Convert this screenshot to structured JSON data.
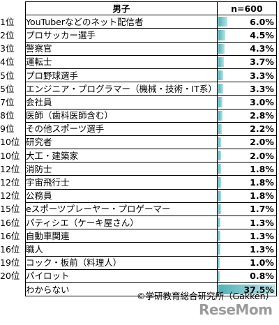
{
  "chart_data": {
    "type": "table",
    "header": {
      "rank": "",
      "category": "男子",
      "value": "n=600"
    },
    "rows": [
      {
        "rank": "1位",
        "label": "YouTuberなどのネット配信者",
        "value": 6.0,
        "text": "6.0%"
      },
      {
        "rank": "2位",
        "label": "プロサッカー選手",
        "value": 4.5,
        "text": "4.5%"
      },
      {
        "rank": "3位",
        "label": "警察官",
        "value": 4.3,
        "text": "4.3%"
      },
      {
        "rank": "4位",
        "label": "運転士",
        "value": 3.7,
        "text": "3.7%"
      },
      {
        "rank": "5位",
        "label": "プロ野球選手",
        "value": 3.3,
        "text": "3.3%"
      },
      {
        "rank": "5位",
        "label": "エンジニア・プログラマー（機械・技術・IT系）",
        "value": 3.3,
        "text": "3.3%"
      },
      {
        "rank": "7位",
        "label": "会社員",
        "value": 3.0,
        "text": "3.0%"
      },
      {
        "rank": "8位",
        "label": "医師（歯科医師含む）",
        "value": 2.8,
        "text": "2.8%"
      },
      {
        "rank": "9位",
        "label": "その他スポーツ選手",
        "value": 2.2,
        "text": "2.2%"
      },
      {
        "rank": "10位",
        "label": "研究者",
        "value": 2.0,
        "text": "2.0%"
      },
      {
        "rank": "10位",
        "label": "大工・建築家",
        "value": 2.0,
        "text": "2.0%"
      },
      {
        "rank": "12位",
        "label": "消防士",
        "value": 1.8,
        "text": "1.8%"
      },
      {
        "rank": "12位",
        "label": "宇宙飛行士",
        "value": 1.8,
        "text": "1.8%"
      },
      {
        "rank": "12位",
        "label": "公務員",
        "value": 1.8,
        "text": "1.8%"
      },
      {
        "rank": "15位",
        "label": "eスポーツプレーヤー・プロゲーマー",
        "value": 1.7,
        "text": "1.7%"
      },
      {
        "rank": "16位",
        "label": "パティシエ（ケーキ屋さん）",
        "value": 1.3,
        "text": "1.3%"
      },
      {
        "rank": "16位",
        "label": "自動車関連",
        "value": 1.3,
        "text": "1.3%"
      },
      {
        "rank": "16位",
        "label": "職人",
        "value": 1.3,
        "text": "1.3%"
      },
      {
        "rank": "19位",
        "label": "コック・板前（料理人）",
        "value": 1.0,
        "text": "1.0%"
      },
      {
        "rank": "20位",
        "label": "パイロット",
        "value": 0.8,
        "text": "0.8%"
      },
      {
        "rank": "",
        "label": "わからない",
        "value": 37.5,
        "text": "37.5%"
      }
    ],
    "bar_max": 37.5,
    "bar_color": "#4fb0b5"
  },
  "footer": {
    "credit": "©学研教育総合研究所（Gakken）",
    "logo": "ReseMom"
  }
}
